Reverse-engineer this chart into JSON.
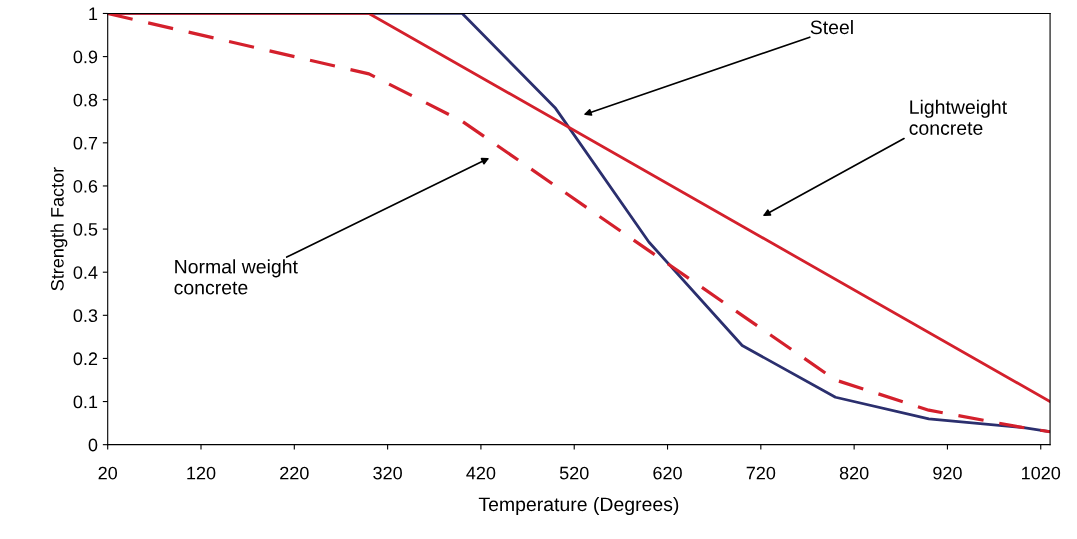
{
  "chart_data": {
    "type": "line",
    "xlabel": "Temperature (Degrees)",
    "ylabel": "Strength Factor",
    "xlim": [
      20,
      1030
    ],
    "xticks": [
      20,
      120,
      220,
      320,
      420,
      520,
      620,
      720,
      820,
      920,
      1020
    ],
    "ylim": [
      0,
      1
    ],
    "yticks": [
      0,
      0.1,
      0.2,
      0.3,
      0.4,
      0.5,
      0.6,
      0.7,
      0.8,
      0.9,
      1
    ],
    "grid": false,
    "legend": false,
    "marker": "none",
    "series": [
      {
        "color": "#2b2f6e",
        "line_style": "solid",
        "x": [
          20,
          400,
          500,
          600,
          700,
          800,
          900,
          1000,
          1030
        ],
        "values": [
          1,
          1,
          0.78,
          0.47,
          0.23,
          0.11,
          0.06,
          0.04,
          0.03
        ]
      },
      {
        "color": "#d4202c",
        "line_style": "dashed",
        "x": [
          20,
          300,
          400,
          500,
          600,
          700,
          800,
          900,
          1000,
          1030
        ],
        "values": [
          1,
          0.86,
          0.75,
          0.6,
          0.45,
          0.3,
          0.15,
          0.08,
          0.04,
          0.03
        ]
      },
      {
        "color": "#d4202c",
        "line_style": "solid",
        "x": [
          20,
          300,
          1030
        ],
        "values": [
          1,
          1,
          0.1
        ]
      }
    ],
    "annotations": [
      "Steel",
      "Lightweight\nconcrete",
      "Normal weight\nconcrete"
    ]
  }
}
